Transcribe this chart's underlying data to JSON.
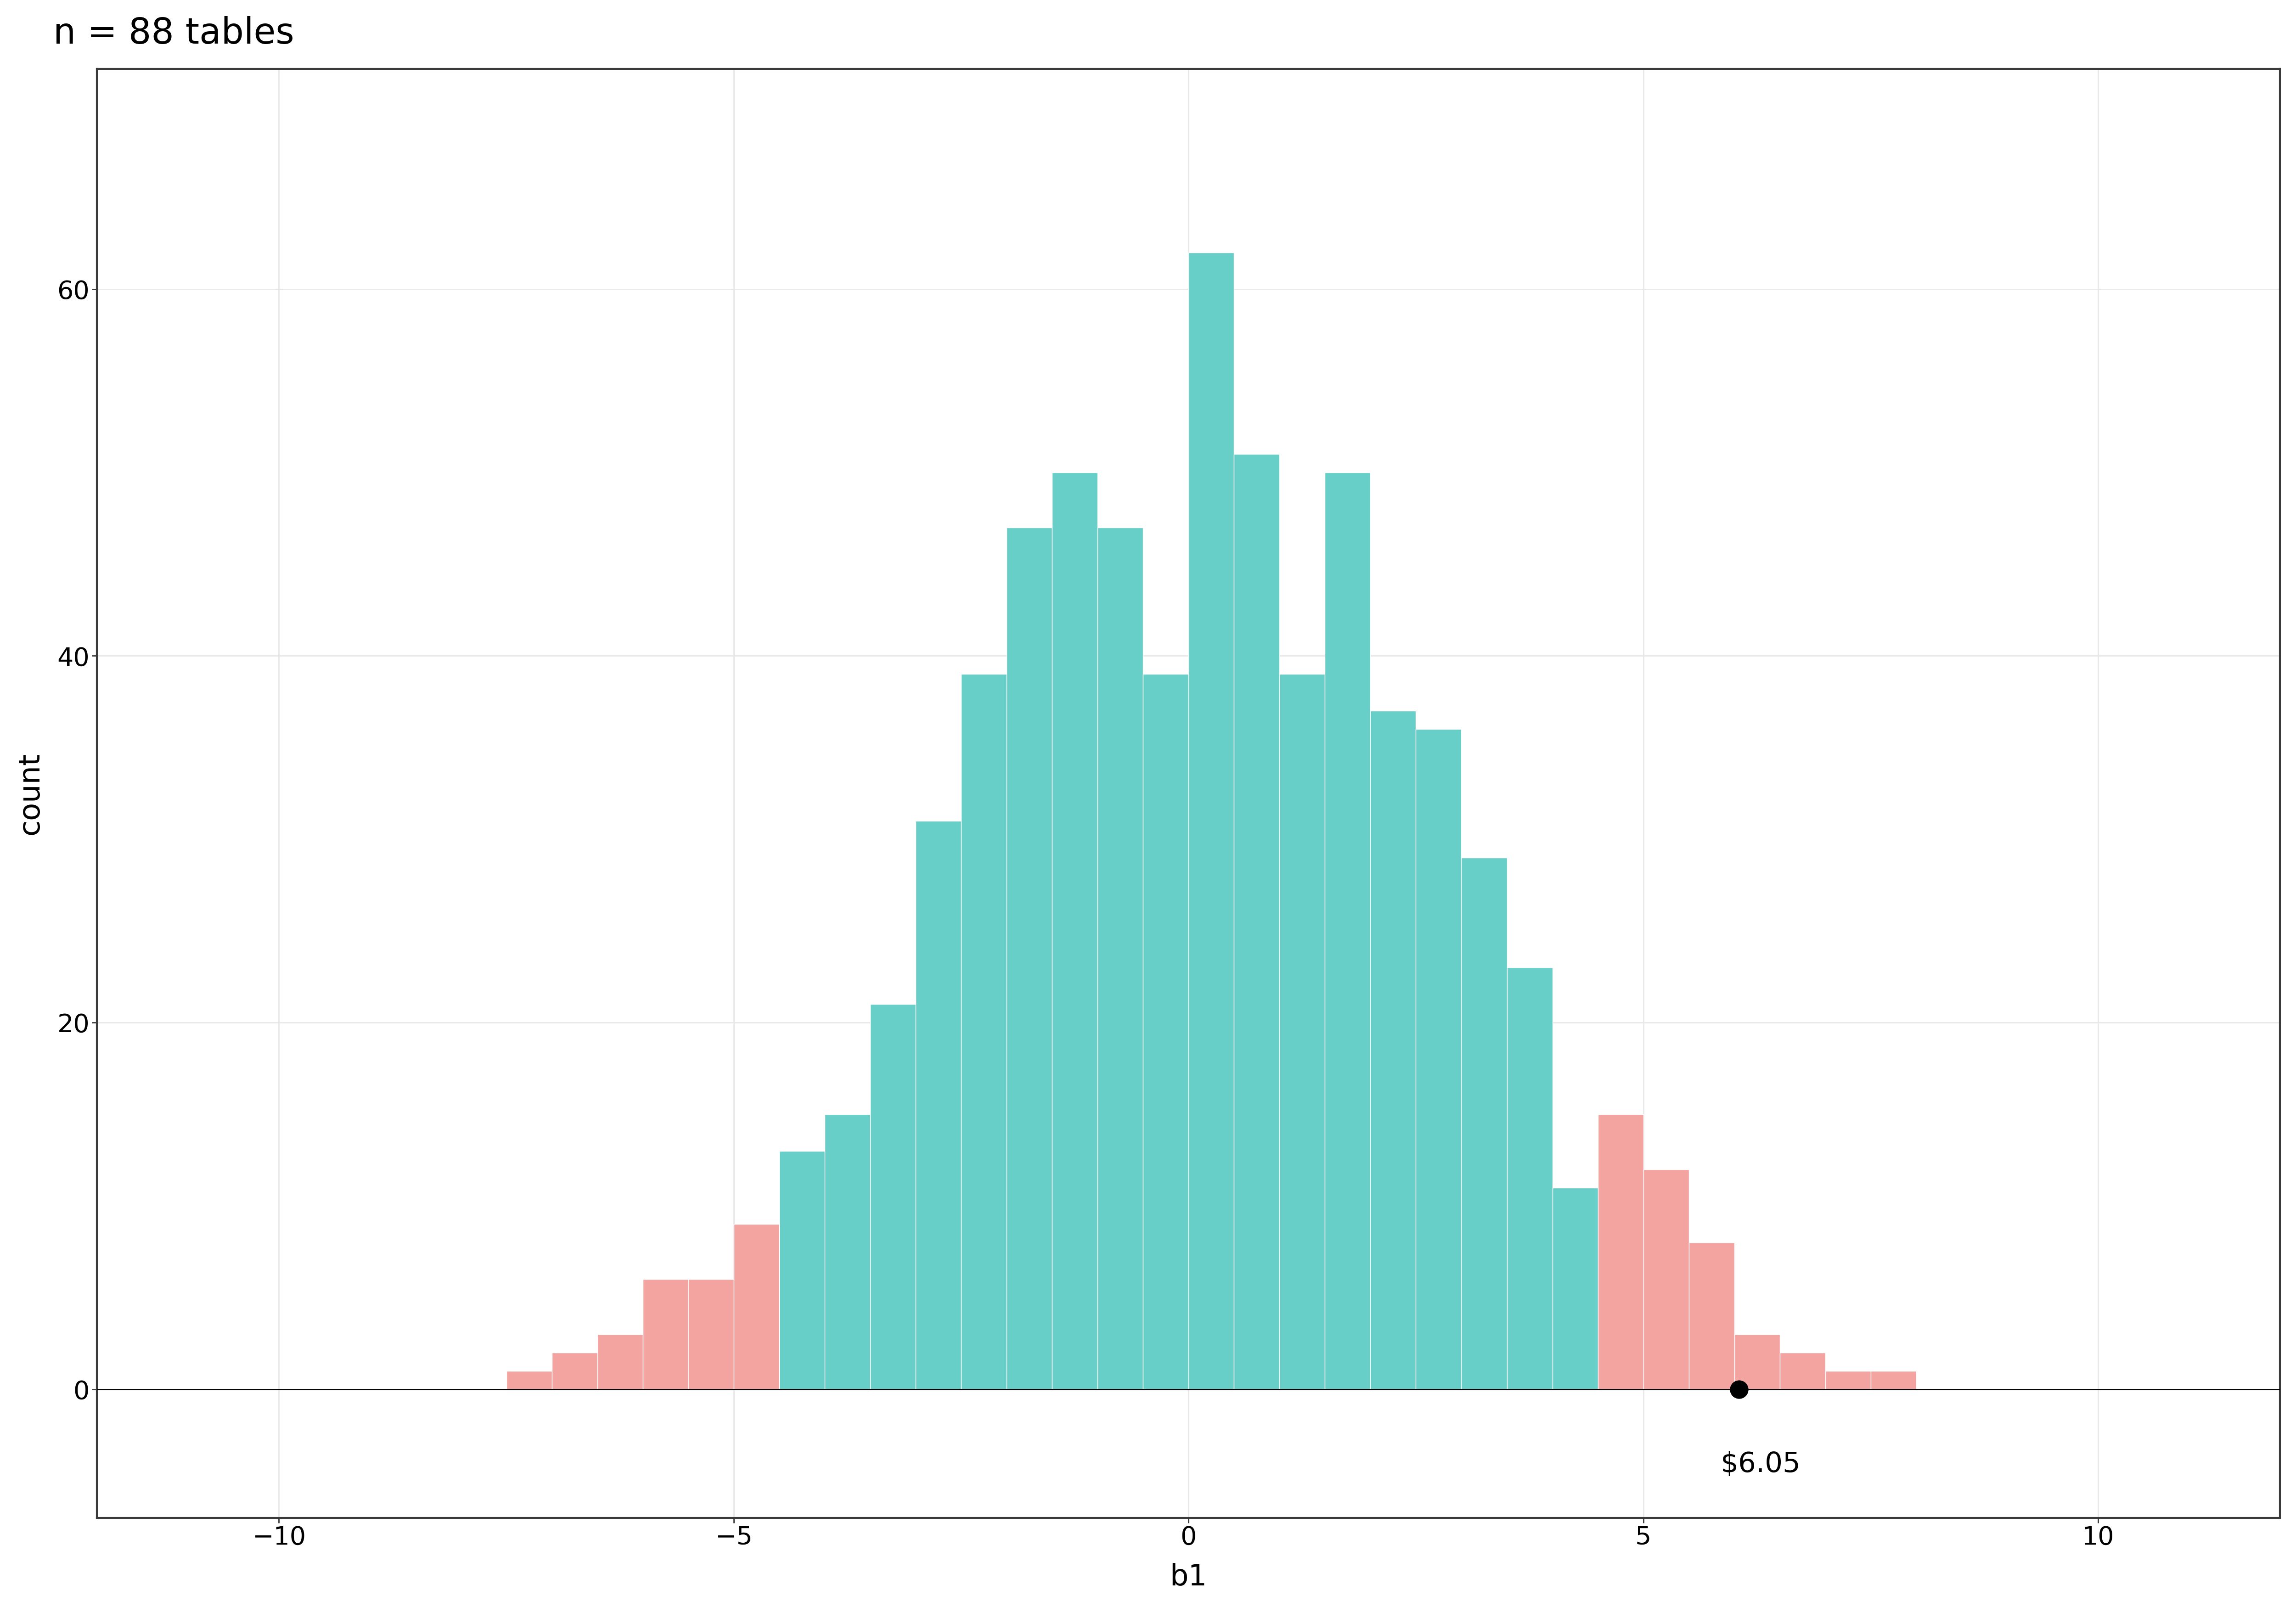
{
  "title": "n = 88 tables",
  "xlabel": "b1",
  "ylabel": "count",
  "xlim": [
    -12,
    12
  ],
  "ylim": [
    -7,
    72
  ],
  "xticks": [
    -10,
    -5,
    0,
    5,
    10
  ],
  "yticks": [
    0,
    20,
    40,
    60
  ],
  "bin_width": 0.5,
  "teal_color": "#67CEC8",
  "pink_color": "#F4A4A0",
  "background_color": "#FFFFFF",
  "panel_color": "#FFFFFF",
  "grid_color": "#E8E8E8",
  "dot_x": 6.05,
  "dot_y": 0,
  "dot_label": "$6.05",
  "ci_lower": -4.5,
  "ci_upper": 4.5,
  "title_fontsize": 56,
  "axis_label_fontsize": 46,
  "tick_fontsize": 40,
  "annotation_fontsize": 44,
  "bar_left_edges": [
    -7.5,
    -7.0,
    -6.5,
    -6.0,
    -5.5,
    -5.0,
    -4.5,
    -4.0,
    -3.5,
    -3.0,
    -2.5,
    -2.0,
    -1.5,
    -1.0,
    -0.5,
    0.0,
    0.5,
    1.0,
    1.5,
    2.0,
    2.5,
    3.0,
    3.5,
    4.0,
    4.5,
    5.0,
    5.5,
    6.0,
    6.5,
    7.0,
    7.5
  ],
  "bar_heights": [
    1,
    2,
    3,
    6,
    6,
    9,
    13,
    15,
    21,
    31,
    39,
    47,
    50,
    47,
    39,
    62,
    51,
    39,
    50,
    37,
    36,
    29,
    23,
    11,
    15,
    12,
    8,
    3,
    2,
    1,
    1
  ],
  "bar_colors_flag": [
    "pink",
    "pink",
    "pink",
    "pink",
    "pink",
    "pink",
    "teal",
    "teal",
    "teal",
    "teal",
    "teal",
    "teal",
    "teal",
    "teal",
    "teal",
    "teal",
    "teal",
    "teal",
    "teal",
    "teal",
    "teal",
    "teal",
    "teal",
    "teal",
    "pink",
    "pink",
    "pink",
    "pink",
    "pink",
    "pink",
    "pink"
  ]
}
